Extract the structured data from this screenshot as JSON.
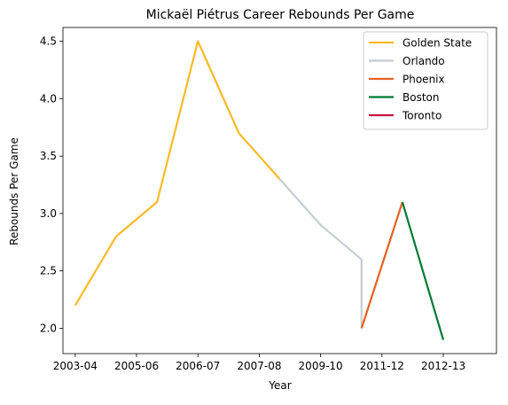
{
  "chart_data": {
    "type": "line",
    "title": "Mickaël Piétrus Career Rebounds Per Game",
    "xlabel": "Year",
    "ylabel": "Rebounds Per Game",
    "x_ticks": [
      "2003-04",
      "2005-06",
      "2006-07",
      "2007-08",
      "2009-10",
      "2011-12",
      "2012-13"
    ],
    "xlim": [
      2002.7,
      2013.3
    ],
    "ylim": [
      1.78,
      4.62
    ],
    "y_ticks": [
      2.0,
      2.5,
      3.0,
      3.5,
      4.0,
      4.5
    ],
    "y_tick_labels": [
      "2.0",
      "2.5",
      "3.0",
      "3.5",
      "4.0",
      "4.5"
    ],
    "grid": false,
    "legend_position": "top-right",
    "series": [
      {
        "name": "Golden State",
        "color": "#FDB927",
        "points": [
          {
            "x": 2003.0,
            "y": 2.2
          },
          {
            "x": 2004.0,
            "y": 2.8
          },
          {
            "x": 2005.0,
            "y": 3.1
          },
          {
            "x": 2006.0,
            "y": 4.5
          },
          {
            "x": 2007.0,
            "y": 3.7
          },
          {
            "x": 2008.0,
            "y": 3.3
          }
        ]
      },
      {
        "name": "Orlando",
        "color": "#C4CED4",
        "points": [
          {
            "x": 2008.0,
            "y": 3.3
          },
          {
            "x": 2009.0,
            "y": 2.9
          },
          {
            "x": 2010.0,
            "y": 2.6
          },
          {
            "x": 2010.0,
            "y": 2.0
          }
        ]
      },
      {
        "name": "Phoenix",
        "color": "#E56020",
        "points": [
          {
            "x": 2010.0,
            "y": 2.0
          },
          {
            "x": 2011.0,
            "y": 3.1
          }
        ]
      },
      {
        "name": "Boston",
        "color": "#007A33",
        "points": [
          {
            "x": 2011.0,
            "y": 3.1
          },
          {
            "x": 2012.0,
            "y": 1.9
          }
        ]
      },
      {
        "name": "Toronto",
        "color": "#CE1141",
        "points": []
      }
    ]
  }
}
